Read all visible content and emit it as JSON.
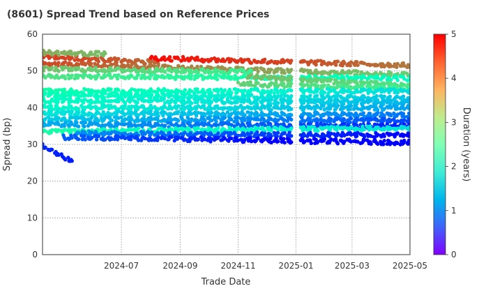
{
  "chart_data": {
    "type": "scatter",
    "title": "(8601)   Spread Trend based on Reference Prices",
    "xlabel": "Trade Date",
    "ylabel": "Spread (bp)",
    "x_range": [
      "2024-04-09",
      "2025-05-01"
    ],
    "ylim": [
      0,
      60
    ],
    "x_ticks": [
      "2024-07",
      "2024-09",
      "2024-11",
      "2025-01",
      "2025-03",
      "2025-05"
    ],
    "y_ticks": [
      0,
      10,
      20,
      30,
      40,
      50,
      60
    ],
    "grid": true,
    "colorbar": {
      "label": "Duration (years)",
      "range": [
        0,
        5
      ],
      "ticks": [
        0,
        1,
        2,
        3,
        4,
        5
      ],
      "colormap": "rainbow"
    },
    "bond_lines": [
      {
        "duration_start": 4.65,
        "start": "2024-04-09",
        "end": "2024-08-10",
        "y_start": 54.0,
        "y_end": 52.3
      },
      {
        "duration_start": 4.55,
        "start": "2024-04-09",
        "end": "2025-05-01",
        "y_start": 52.0,
        "y_end": 49.0
      },
      {
        "duration_start": 4.95,
        "start": "2024-08-01",
        "end": "2025-05-01",
        "y_start": 53.5,
        "y_end": 51.5
      },
      {
        "duration_start": 3.85,
        "start": "2024-04-09",
        "end": "2024-06-15",
        "y_start": 55.0,
        "y_end": 54.6
      },
      {
        "duration_start": 3.65,
        "start": "2024-04-09",
        "end": "2024-11-15",
        "y_start": 50.5,
        "y_end": 49.8
      },
      {
        "duration_start": 3.3,
        "start": "2024-04-09",
        "end": "2025-05-01",
        "y_start": 48.5,
        "y_end": 48.0
      },
      {
        "duration_start": 3.7,
        "start": "2024-11-10",
        "end": "2025-05-01",
        "y_start": 48.5,
        "y_end": 46.0
      },
      {
        "duration_start": 3.5,
        "start": "2024-11-01",
        "end": "2025-05-01",
        "y_start": 46.5,
        "y_end": 45.0
      },
      {
        "duration_start": 2.7,
        "start": "2024-04-09",
        "end": "2025-05-01",
        "y_start": 44.5,
        "y_end": 44.5
      },
      {
        "duration_start": 2.45,
        "start": "2024-04-09",
        "end": "2025-05-01",
        "y_start": 43.5,
        "y_end": 42.5
      },
      {
        "duration_start": 2.3,
        "start": "2024-04-09",
        "end": "2025-05-01",
        "y_start": 42.0,
        "y_end": 41.5
      },
      {
        "duration_start": 2.15,
        "start": "2024-04-09",
        "end": "2025-05-01",
        "y_start": 40.0,
        "y_end": 40.0
      },
      {
        "duration_start": 1.8,
        "start": "2024-04-09",
        "end": "2025-05-01",
        "y_start": 38.5,
        "y_end": 38.0
      },
      {
        "duration_start": 1.5,
        "start": "2024-04-09",
        "end": "2025-05-01",
        "y_start": 37.0,
        "y_end": 36.5
      },
      {
        "duration_start": 1.2,
        "start": "2024-04-09",
        "end": "2025-05-01",
        "y_start": 35.5,
        "y_end": 35.0
      },
      {
        "duration_start": 2.75,
        "start": "2024-04-09",
        "end": "2025-05-01",
        "y_start": 33.5,
        "y_end": 34.5
      },
      {
        "duration_start": 0.95,
        "start": "2024-05-15",
        "end": "2025-05-01",
        "y_start": 33.0,
        "y_end": 32.5
      },
      {
        "duration_start": 0.6,
        "start": "2024-05-01",
        "end": "2025-05-01",
        "y_start": 32.0,
        "y_end": 30.5
      },
      {
        "duration_start": 0.25,
        "start": "2024-04-09",
        "end": "2024-05-10",
        "y_start": 29.5,
        "y_end": 25.5
      }
    ]
  }
}
